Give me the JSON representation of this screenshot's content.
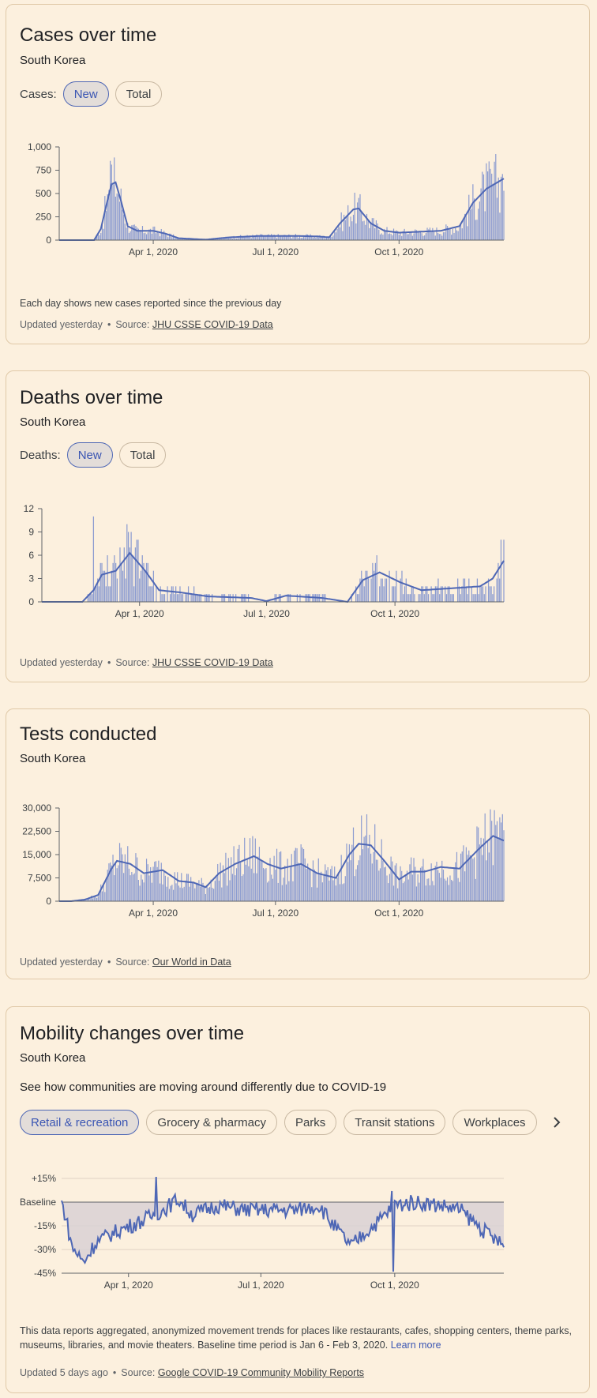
{
  "colors": {
    "accent": "#4e67b5",
    "bar": "#8b9bd0",
    "band": "#d9d1d5",
    "bg": "#fcf0de"
  },
  "cases": {
    "title": "Cases over time",
    "subtitle": "South Korea",
    "toggle_label": "Cases:",
    "toggle_new": "New",
    "toggle_total": "Total",
    "note": "Each day shows new cases reported since the previous day",
    "updated": "Updated yesterday",
    "source_prefix": "Source:",
    "source_link": "JHU CSSE COVID-19 Data"
  },
  "deaths": {
    "title": "Deaths over time",
    "subtitle": "South Korea",
    "toggle_label": "Deaths:",
    "toggle_new": "New",
    "toggle_total": "Total",
    "updated": "Updated yesterday",
    "source_prefix": "Source:",
    "source_link": "JHU CSSE COVID-19 Data"
  },
  "tests": {
    "title": "Tests conducted",
    "subtitle": "South Korea",
    "updated": "Updated yesterday",
    "source_prefix": "Source:",
    "source_link": "Our World in Data"
  },
  "mobility": {
    "title": "Mobility changes over time",
    "subtitle": "South Korea",
    "intro": "See how communities are moving around differently due to COVID-19",
    "tabs": [
      "Retail & recreation",
      "Grocery & pharmacy",
      "Parks",
      "Transit stations",
      "Workplaces"
    ],
    "desc": "This data reports aggregated, anonymized movement trends for places like restaurants, cafes, shopping centers, theme parks, museums, libraries, and movie theaters. Baseline time period is Jan 6 - Feb 3, 2020.",
    "learn_more": "Learn more",
    "updated": "Updated 5 days ago",
    "source_prefix": "Source:",
    "source_link": "Google COVID-19 Community Mobility Reports"
  },
  "chart_data": [
    {
      "id": "cases",
      "type": "bar",
      "title": "Cases over time",
      "x_start": "2020-01-22",
      "x_end": "2020-12-18",
      "ylim": [
        0,
        1000
      ],
      "yticks": [
        0,
        250,
        500,
        750,
        1000
      ],
      "ytick_labels": [
        "0",
        "250",
        "500",
        "750",
        "1,000"
      ],
      "xtick_dates": [
        "2020-04-01",
        "2020-07-01",
        "2020-10-01"
      ],
      "xtick_labels": [
        "Apr 1, 2020",
        "Jul 1, 2020",
        "Oct 1, 2020"
      ],
      "series_desc": "daily new cases (bars) with 7-day average (line)",
      "keypoints": [
        [
          "2020-01-22",
          0
        ],
        [
          "2020-02-17",
          0
        ],
        [
          "2020-02-22",
          120
        ],
        [
          "2020-02-27",
          430
        ],
        [
          "2020-03-01",
          600
        ],
        [
          "2020-03-04",
          620
        ],
        [
          "2020-03-08",
          420
        ],
        [
          "2020-03-13",
          150
        ],
        [
          "2020-03-20",
          100
        ],
        [
          "2020-04-01",
          100
        ],
        [
          "2020-04-10",
          70
        ],
        [
          "2020-04-20",
          20
        ],
        [
          "2020-05-10",
          5
        ],
        [
          "2020-05-28",
          30
        ],
        [
          "2020-06-20",
          45
        ],
        [
          "2020-07-15",
          45
        ],
        [
          "2020-08-01",
          40
        ],
        [
          "2020-08-10",
          30
        ],
        [
          "2020-08-18",
          180
        ],
        [
          "2020-08-28",
          330
        ],
        [
          "2020-09-01",
          340
        ],
        [
          "2020-09-10",
          180
        ],
        [
          "2020-09-20",
          100
        ],
        [
          "2020-10-01",
          80
        ],
        [
          "2020-11-01",
          100
        ],
        [
          "2020-11-15",
          150
        ],
        [
          "2020-11-25",
          400
        ],
        [
          "2020-12-05",
          550
        ],
        [
          "2020-12-18",
          660
        ]
      ],
      "spikes": [
        [
          "2020-02-29",
          850
        ],
        [
          "2020-03-01",
          810
        ],
        [
          "2020-03-02",
          600
        ],
        [
          "2020-12-16",
          680
        ]
      ]
    },
    {
      "id": "deaths",
      "type": "bar",
      "title": "Deaths over time",
      "x_start": "2020-01-22",
      "x_end": "2020-12-18",
      "ylim": [
        0,
        12
      ],
      "yticks": [
        0,
        3,
        6,
        9,
        12
      ],
      "ytick_labels": [
        "0",
        "3",
        "6",
        "9",
        "12"
      ],
      "xtick_dates": [
        "2020-04-01",
        "2020-07-01",
        "2020-10-01"
      ],
      "xtick_labels": [
        "Apr 1, 2020",
        "Jul 1, 2020",
        "Oct 1, 2020"
      ],
      "series_desc": "daily new deaths (bars) with 7-day average (line)",
      "keypoints": [
        [
          "2020-01-22",
          0
        ],
        [
          "2020-02-20",
          0
        ],
        [
          "2020-02-28",
          1.5
        ],
        [
          "2020-03-05",
          3.5
        ],
        [
          "2020-03-15",
          4
        ],
        [
          "2020-03-25",
          6.3
        ],
        [
          "2020-04-05",
          4
        ],
        [
          "2020-04-15",
          1.5
        ],
        [
          "2020-05-01",
          1.2
        ],
        [
          "2020-05-20",
          0.7
        ],
        [
          "2020-06-20",
          0.5
        ],
        [
          "2020-07-01",
          0.1
        ],
        [
          "2020-07-15",
          0.8
        ],
        [
          "2020-08-10",
          0.5
        ],
        [
          "2020-08-28",
          0
        ],
        [
          "2020-09-08",
          2.8
        ],
        [
          "2020-09-20",
          3.8
        ],
        [
          "2020-10-05",
          2.5
        ],
        [
          "2020-10-20",
          1.5
        ],
        [
          "2020-11-15",
          1.8
        ],
        [
          "2020-12-01",
          2
        ],
        [
          "2020-12-10",
          3
        ],
        [
          "2020-12-18",
          5.3
        ]
      ],
      "spikes": [
        [
          "2020-02-28",
          11
        ],
        [
          "2020-03-24",
          9
        ],
        [
          "2020-03-26",
          9
        ],
        [
          "2020-12-16",
          8
        ],
        [
          "2020-12-18",
          8
        ]
      ]
    },
    {
      "id": "tests",
      "type": "bar",
      "title": "Tests conducted",
      "x_start": "2020-01-22",
      "x_end": "2020-12-18",
      "ylim": [
        0,
        30000
      ],
      "yticks": [
        0,
        7500,
        15000,
        22500,
        30000
      ],
      "ytick_labels": [
        "0",
        "7,500",
        "15,000",
        "22,500",
        "30,000"
      ],
      "xtick_dates": [
        "2020-04-01",
        "2020-07-01",
        "2020-10-01"
      ],
      "xtick_labels": [
        "Apr 1, 2020",
        "Jul 1, 2020",
        "Oct 1, 2020"
      ],
      "series_desc": "daily tests (bars) with 7-day average (line)",
      "keypoints": [
        [
          "2020-01-22",
          0
        ],
        [
          "2020-01-31",
          0
        ],
        [
          "2020-02-10",
          500
        ],
        [
          "2020-02-20",
          2000
        ],
        [
          "2020-03-01",
          10500
        ],
        [
          "2020-03-05",
          13000
        ],
        [
          "2020-03-15",
          12000
        ],
        [
          "2020-03-25",
          9000
        ],
        [
          "2020-04-08",
          10000
        ],
        [
          "2020-04-20",
          6500
        ],
        [
          "2020-05-01",
          6000
        ],
        [
          "2020-05-10",
          4500
        ],
        [
          "2020-05-20",
          9000
        ],
        [
          "2020-06-01",
          12000
        ],
        [
          "2020-06-15",
          14500
        ],
        [
          "2020-06-25",
          12000
        ],
        [
          "2020-07-05",
          10500
        ],
        [
          "2020-07-20",
          12000
        ],
        [
          "2020-08-01",
          9000
        ],
        [
          "2020-08-15",
          7500
        ],
        [
          "2020-08-25",
          15000
        ],
        [
          "2020-09-01",
          18500
        ],
        [
          "2020-09-10",
          18000
        ],
        [
          "2020-09-20",
          13000
        ],
        [
          "2020-10-01",
          7000
        ],
        [
          "2020-10-10",
          9500
        ],
        [
          "2020-10-20",
          9500
        ],
        [
          "2020-11-01",
          11000
        ],
        [
          "2020-11-15",
          10500
        ],
        [
          "2020-12-01",
          17500
        ],
        [
          "2020-12-10",
          21000
        ],
        [
          "2020-12-18",
          19500
        ]
      ],
      "spikes": [
        [
          "2020-12-15",
          27000
        ],
        [
          "2020-12-17",
          28000
        ]
      ]
    },
    {
      "id": "mobility",
      "type": "line",
      "title": "Mobility changes over time",
      "series": "Retail & recreation",
      "x_start": "2020-02-15",
      "x_end": "2020-12-15",
      "ylim": [
        -45,
        15
      ],
      "yticks": [
        15,
        0,
        -15,
        -30,
        -45
      ],
      "ytick_labels": [
        "+15%",
        "Baseline",
        "-15%",
        "-30%",
        "-45%"
      ],
      "xtick_dates": [
        "2020-04-01",
        "2020-07-01",
        "2020-10-01"
      ],
      "xtick_labels": [
        "Apr 1, 2020",
        "Jul 1, 2020",
        "Oct 1, 2020"
      ],
      "keypoints": [
        [
          "2020-02-15",
          0
        ],
        [
          "2020-02-18",
          -10
        ],
        [
          "2020-02-22",
          -28
        ],
        [
          "2020-03-01",
          -38
        ],
        [
          "2020-03-10",
          -25
        ],
        [
          "2020-03-25",
          -18
        ],
        [
          "2020-04-10",
          -12
        ],
        [
          "2020-04-25",
          -5
        ],
        [
          "2020-05-05",
          2
        ],
        [
          "2020-05-15",
          -8
        ],
        [
          "2020-06-01",
          -2
        ],
        [
          "2020-06-20",
          -5
        ],
        [
          "2020-07-10",
          -5
        ],
        [
          "2020-07-25",
          -5
        ],
        [
          "2020-08-10",
          -2
        ],
        [
          "2020-08-20",
          -15
        ],
        [
          "2020-09-01",
          -28
        ],
        [
          "2020-09-10",
          -20
        ],
        [
          "2020-09-20",
          -12
        ],
        [
          "2020-10-01",
          -2
        ],
        [
          "2020-10-15",
          0
        ],
        [
          "2020-11-01",
          -2
        ],
        [
          "2020-11-15",
          -5
        ],
        [
          "2020-12-01",
          -18
        ],
        [
          "2020-12-15",
          -28
        ]
      ],
      "spikes": [
        [
          "2020-04-20",
          16
        ],
        [
          "2020-09-29",
          7
        ],
        [
          "2020-09-30",
          -44
        ]
      ]
    }
  ]
}
